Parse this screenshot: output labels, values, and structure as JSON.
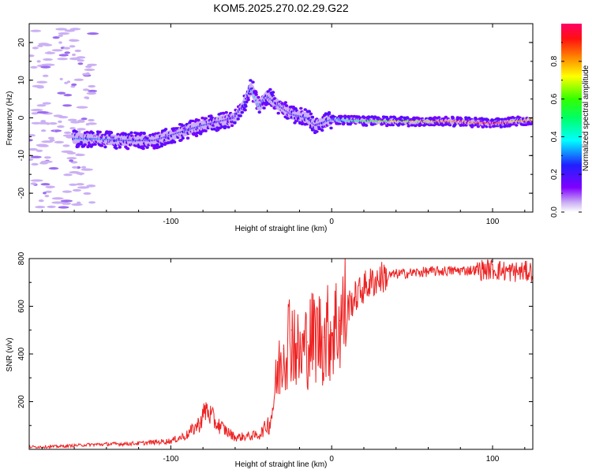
{
  "title": "KOM5.2025.270.02.29.G22",
  "chart_data": [
    {
      "type": "heatmap",
      "xlabel": "Height of straight line (km)",
      "ylabel": "Frequency (Hz)",
      "xlim": [
        -188,
        125
      ],
      "ylim": [
        -25,
        25
      ],
      "xticks": [
        {
          "v": -100,
          "label": "-100"
        },
        {
          "v": 0,
          "label": "0"
        },
        {
          "v": 100,
          "label": "100"
        }
      ],
      "yticks": [
        {
          "v": 20,
          "label": "20"
        },
        {
          "v": 10,
          "label": "10"
        },
        {
          "v": 0,
          "label": "0"
        },
        {
          "v": -10,
          "label": "-10"
        },
        {
          "v": -20,
          "label": "-20"
        }
      ],
      "colorbar": {
        "label": "Normalized spectral amplitude",
        "range": [
          0,
          1
        ],
        "ticks": [
          {
            "v": 0.0,
            "label": "0.0"
          },
          {
            "v": 0.2,
            "label": "0.2"
          },
          {
            "v": 0.4,
            "label": "0.4"
          },
          {
            "v": 0.6,
            "label": "0.6"
          },
          {
            "v": 0.8,
            "label": "0.8"
          }
        ]
      },
      "ridge": {
        "description_x": [
          -150,
          -130,
          -110,
          -95,
          -80,
          -70,
          -60,
          -55,
          -50,
          -45,
          -40,
          -35,
          -25,
          -15,
          -10,
          0,
          20,
          50,
          80,
          100,
          125
        ],
        "frequency": [
          -5.5,
          -6,
          -6,
          -4,
          -2,
          -1,
          0,
          3,
          8,
          3,
          6,
          4,
          1,
          0,
          -2,
          -0.5,
          -0.8,
          -1,
          -1,
          -1.5,
          -0.5
        ],
        "amplitude": [
          0.3,
          0.25,
          0.2,
          0.22,
          0.25,
          0.2,
          0.2,
          0.2,
          0.35,
          0.3,
          0.25,
          0.2,
          0.2,
          0.25,
          0.15,
          0.3,
          0.55,
          0.7,
          0.85,
          0.95,
          0.7
        ]
      }
    },
    {
      "type": "line",
      "xlabel": "Height of straight line (km)",
      "ylabel": "SNR (v/v)",
      "xlim": [
        -188,
        125
      ],
      "ylim": [
        0,
        800
      ],
      "xticks": [
        {
          "v": -100,
          "label": "-100"
        },
        {
          "v": 0,
          "label": "0"
        },
        {
          "v": 100,
          "label": "100"
        }
      ],
      "yticks": [
        {
          "v": 800,
          "label": "800"
        },
        {
          "v": 600,
          "label": "600"
        },
        {
          "v": 400,
          "label": "400"
        },
        {
          "v": 200,
          "label": "200"
        }
      ],
      "series": [
        {
          "name": "SNR",
          "color": "#ee2222",
          "x": [
            -188,
            -170,
            -150,
            -120,
            -100,
            -90,
            -82,
            -78,
            -72,
            -60,
            -45,
            -38,
            -34,
            -30,
            -25,
            -20,
            -15,
            -10,
            -5,
            0,
            5,
            10,
            15,
            20,
            30,
            40,
            50,
            60,
            70,
            80,
            90,
            100,
            110,
            120,
            125
          ],
          "y": [
            10,
            12,
            20,
            25,
            35,
            60,
            110,
            170,
            110,
            50,
            60,
            120,
            300,
            420,
            500,
            380,
            450,
            480,
            470,
            500,
            540,
            600,
            640,
            680,
            720,
            735,
            740,
            745,
            748,
            750,
            752,
            755,
            745,
            745,
            748
          ]
        }
      ]
    }
  ]
}
